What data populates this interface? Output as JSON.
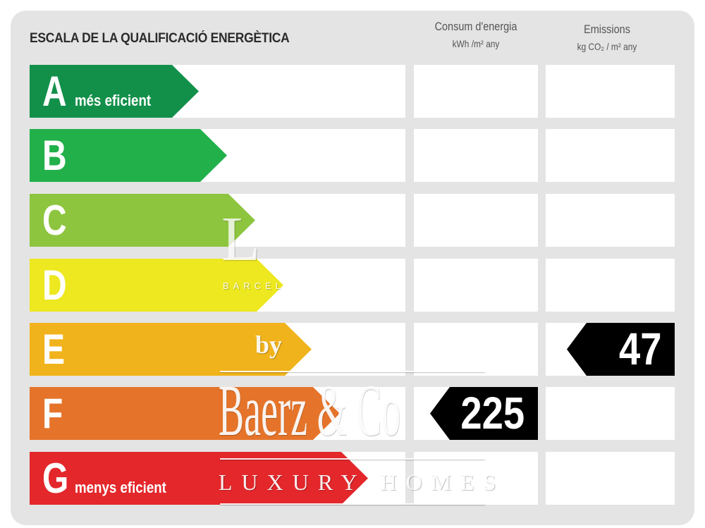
{
  "title": "ESCALA DE LA QUALIFICACIÓ ENERGÈTICA",
  "columns": {
    "consumption": {
      "label": "Consum d'energia",
      "unit": "kWh /m² any"
    },
    "emissions": {
      "label": "Emissions",
      "unit": "kg CO₂ / m² any"
    }
  },
  "classes": [
    {
      "letter": "A",
      "desc": "més eficient",
      "color": "#12904a"
    },
    {
      "letter": "B",
      "desc": "",
      "color": "#22b04b"
    },
    {
      "letter": "C",
      "desc": "",
      "color": "#8dc53f"
    },
    {
      "letter": "D",
      "desc": "",
      "color": "#ede81f"
    },
    {
      "letter": "E",
      "desc": "",
      "color": "#f1b31b"
    },
    {
      "letter": "F",
      "desc": "",
      "color": "#e5742a"
    },
    {
      "letter": "G",
      "desc": "menys eficient",
      "color": "#e3272b"
    }
  ],
  "ratings": {
    "consumption": {
      "class": "F",
      "value": "225"
    },
    "emissions": {
      "class": "E",
      "value": "47"
    }
  },
  "watermark": {
    "by": "by",
    "brand": "Baerz & Co",
    "tagline": "LUXURY HOMES",
    "faint_top": "L",
    "faint_sub": "BARCEL"
  }
}
